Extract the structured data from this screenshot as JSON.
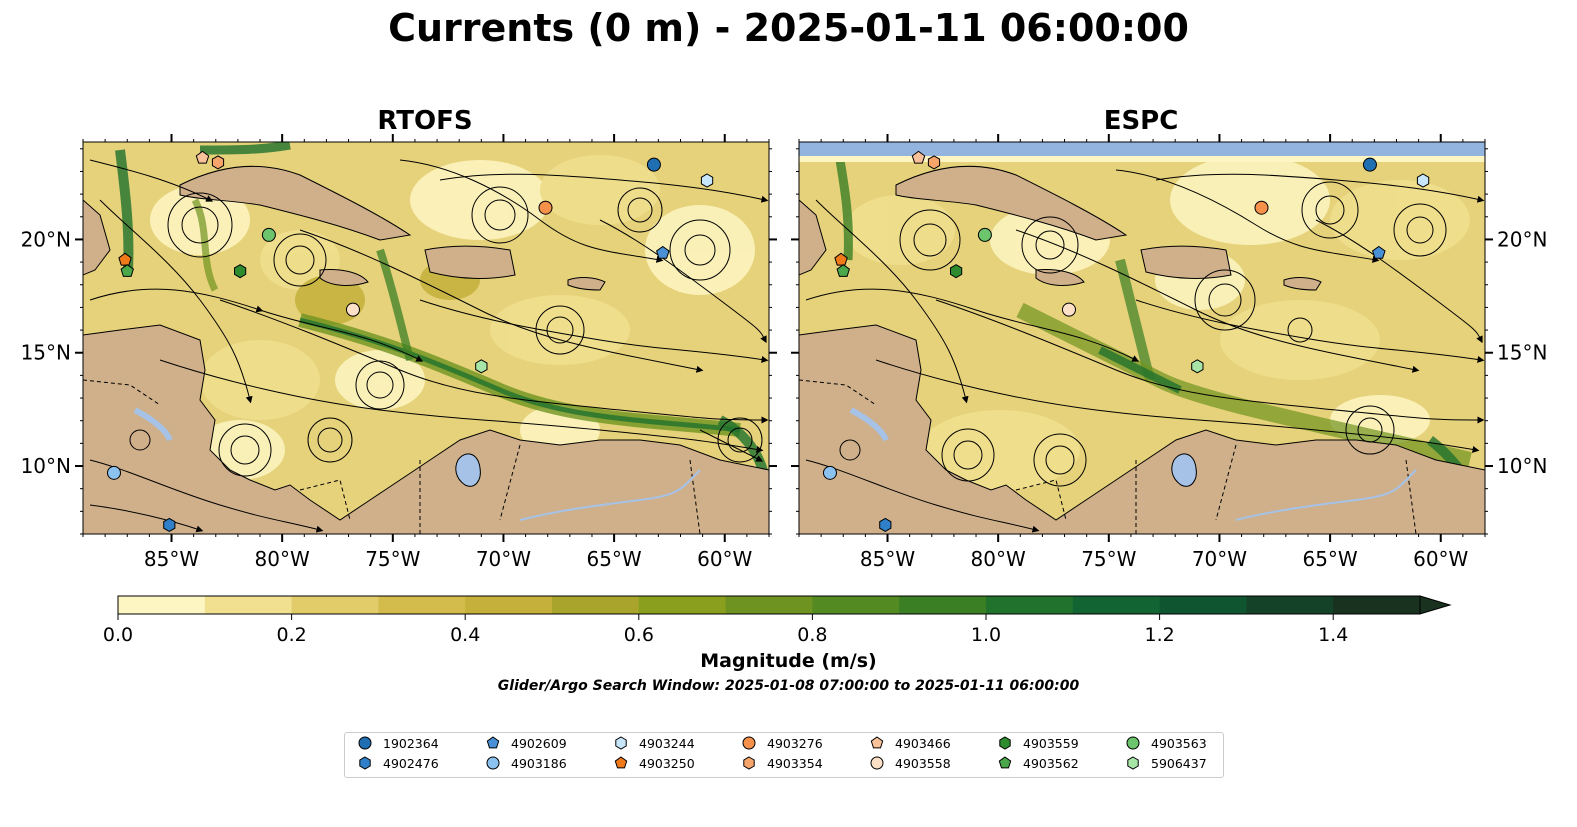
{
  "title": "Currents (0 m) - 2025-01-11 06:00:00",
  "panels": [
    {
      "name": "RTOFS"
    },
    {
      "name": "ESPC"
    }
  ],
  "x_ticks": [
    "85°W",
    "80°W",
    "75°W",
    "70°W",
    "65°W",
    "60°W"
  ],
  "y_ticks": [
    "10°N",
    "15°N",
    "20°N"
  ],
  "colorbar": {
    "label": "Magnitude (m/s)",
    "tick_labels": [
      "0.0",
      "0.2",
      "0.4",
      "0.6",
      "0.8",
      "1.0",
      "1.2",
      "1.4"
    ],
    "range": [
      0,
      1.5
    ],
    "extend": "max",
    "colors": [
      "#fdf6c3",
      "#f0e08f",
      "#e2cc6a",
      "#d3bb4c",
      "#c4b03a",
      "#a9a52c",
      "#8b9f1e",
      "#6f9320",
      "#548a22",
      "#3b7f25",
      "#21722d",
      "#136433",
      "#0e5530",
      "#144228",
      "#18321f"
    ]
  },
  "search_window": "Glider/Argo Search Window: 2025-01-08 07:00:00 to 2025-01-11 06:00:00",
  "colors": {
    "land": "#cfb08a",
    "water": "#a6c2e6",
    "ocean_low": "#fdf6c3",
    "ocean_mid": "#c4b03a",
    "ocean_high": "#21722d"
  },
  "floats": [
    {
      "id": "1902364",
      "marker": "circle",
      "color": "#1f6fb2",
      "lon": -63.2,
      "lat": 23.3
    },
    {
      "id": "4902476",
      "marker": "hexagon",
      "color": "#2f80c8",
      "lon": -85.1,
      "lat": 7.4
    },
    {
      "id": "4902609",
      "marker": "pentagon",
      "color": "#4a90d6",
      "lon": -62.8,
      "lat": 19.4
    },
    {
      "id": "4903186",
      "marker": "circle",
      "color": "#8cc2f0",
      "lon": -87.6,
      "lat": 9.7
    },
    {
      "id": "4903244",
      "marker": "hexagon",
      "color": "#c8e6fa",
      "lon": -60.8,
      "lat": 22.6
    },
    {
      "id": "4903250",
      "marker": "pentagon",
      "color": "#f07a1a",
      "lon": -87.1,
      "lat": 19.1
    },
    {
      "id": "4903276",
      "marker": "circle",
      "color": "#f5914a",
      "lon": -68.1,
      "lat": 21.4
    },
    {
      "id": "4903354",
      "marker": "hexagon",
      "color": "#f7a56a",
      "lon": -82.9,
      "lat": 23.4
    },
    {
      "id": "4903466",
      "marker": "pentagon",
      "color": "#f9c19a",
      "lon": -83.6,
      "lat": 23.6
    },
    {
      "id": "4903558",
      "marker": "circle",
      "color": "#fde0c8",
      "lon": -76.8,
      "lat": 16.9
    },
    {
      "id": "4903559",
      "marker": "hexagon",
      "color": "#2e8b2e",
      "lon": -81.9,
      "lat": 18.6
    },
    {
      "id": "4903562",
      "marker": "pentagon",
      "color": "#4aa84a",
      "lon": -87.0,
      "lat": 18.6
    },
    {
      "id": "4903563",
      "marker": "circle",
      "color": "#6cc46c",
      "lon": -80.6,
      "lat": 20.2
    },
    {
      "id": "5906437",
      "marker": "hexagon",
      "color": "#a8e6a8",
      "lon": -71.0,
      "lat": 14.4
    }
  ],
  "legend_label": [
    "1902364",
    "4902476",
    "4902609",
    "4903186",
    "4903244",
    "4903250",
    "4903276",
    "4903354",
    "4903466",
    "4903558",
    "4903559",
    "4903562",
    "4903563",
    "5906437"
  ]
}
